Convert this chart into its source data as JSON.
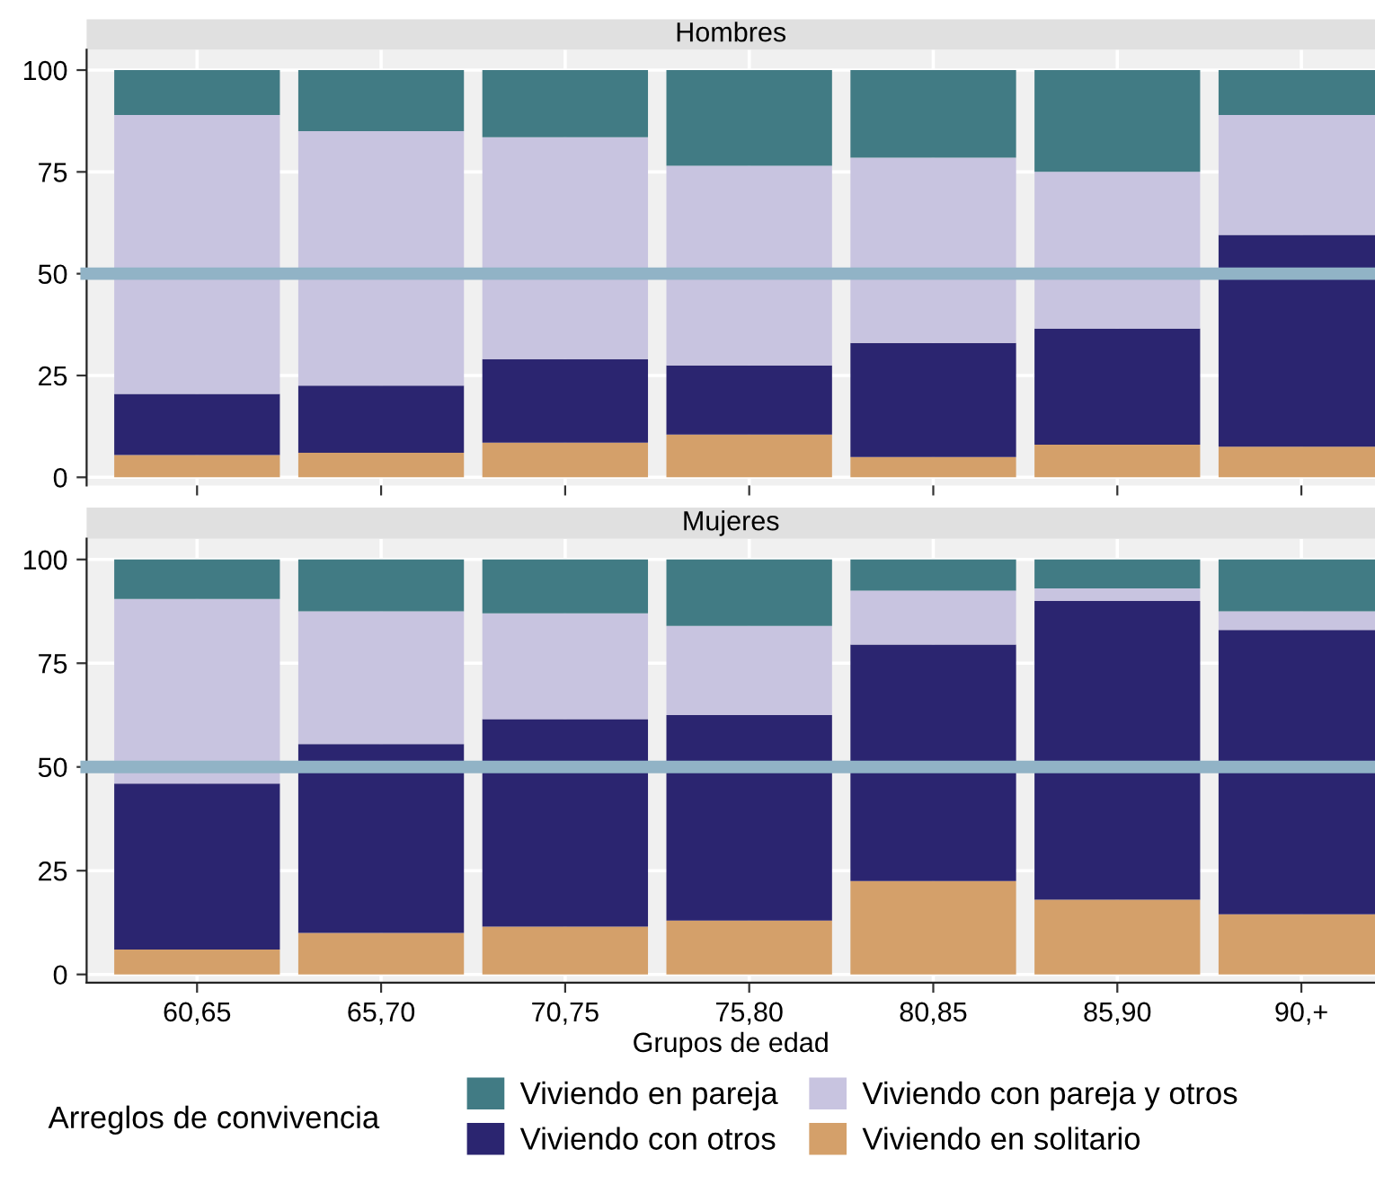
{
  "chart_data": [
    {
      "type": "bar",
      "title": "Hombres",
      "stacked": true,
      "categories": [
        null,
        null,
        null,
        null,
        null,
        null,
        null
      ],
      "ylim": [
        -2,
        105
      ],
      "yticks": [
        0,
        25,
        50,
        75,
        100
      ],
      "grid": true,
      "tick_labels": "y",
      "legend": "bottom",
      "legend_title": "Arreglos de convivencia",
      "series": [
        {
          "name": "Viviendo en solitario",
          "color": "#d4a06a",
          "values": [
            5.5,
            6,
            8.5,
            10.5,
            5,
            8,
            7.5
          ]
        },
        {
          "name": "Viviendo con otros",
          "color": "#2b2570",
          "values": [
            15,
            16.5,
            20.5,
            17,
            28,
            28.5,
            52
          ]
        },
        {
          "name": "Viviendo con pareja y otros",
          "color": "#c8c4e0",
          "values": [
            68.5,
            62.5,
            54.5,
            49,
            45.5,
            38.5,
            29.5
          ]
        },
        {
          "name": "Viviendo en pareja",
          "color": "#417b84",
          "values": [
            11,
            15,
            16.5,
            23.5,
            21.5,
            25,
            11
          ]
        }
      ],
      "ref_lines": [
        {
          "axis": "y",
          "value": 50,
          "color": "#91b3c6"
        }
      ]
    },
    {
      "type": "bar",
      "title": "Mujeres",
      "stacked": true,
      "categories": [
        "60,65",
        "65,70",
        "70,75",
        "75,80",
        "80,85",
        "85,90",
        "90,+"
      ],
      "xlabel": "Grupos de edad",
      "ylim": [
        -2,
        105
      ],
      "yticks": [
        0,
        25,
        50,
        75,
        100
      ],
      "grid": true,
      "series": [
        {
          "color": "#d4a06a",
          "values": [
            6,
            10,
            11.5,
            13,
            22.5,
            18,
            14.5
          ]
        },
        {
          "color": "#2b2570",
          "values": [
            40,
            45.5,
            50,
            49.5,
            57,
            72,
            68.5
          ]
        },
        {
          "color": "#c8c4e0",
          "values": [
            44.5,
            32,
            25.5,
            21.5,
            13,
            3,
            4.5
          ]
        },
        {
          "color": "#417b84",
          "values": [
            9.5,
            12.5,
            13,
            16,
            7.5,
            7,
            12.5
          ]
        }
      ],
      "ref_lines": [
        {
          "axis": "y",
          "value": 50,
          "color": "#91b3c6"
        }
      ]
    }
  ]
}
